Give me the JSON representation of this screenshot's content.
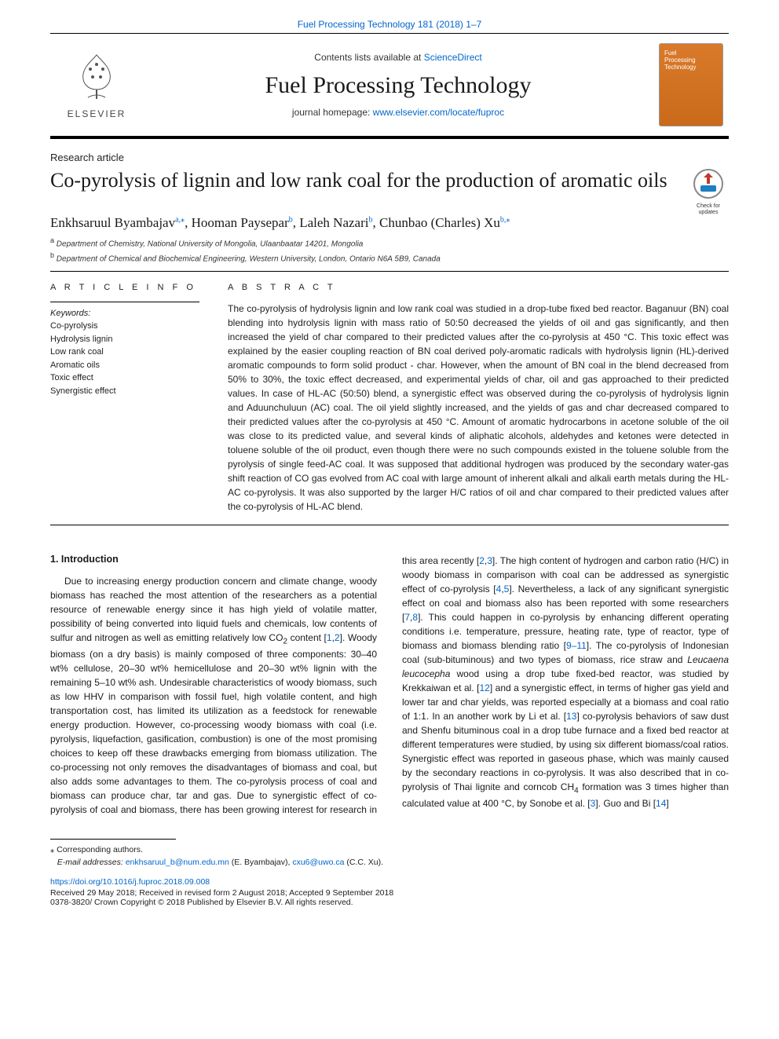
{
  "top_link": "Fuel Processing Technology 181 (2018) 1–7",
  "header": {
    "contents_text": "Contents lists available at ",
    "contents_link": "ScienceDirect",
    "journal_name": "Fuel Processing Technology",
    "homepage_text": "journal homepage: ",
    "homepage_link": "www.elsevier.com/locate/fuproc",
    "publisher_label": "ELSEVIER"
  },
  "article_type": "Research article",
  "title": "Co-pyrolysis of lignin and low rank coal for the production of aromatic oils",
  "check_updates_label": "Check for updates",
  "authors_html": "Enkhsaruul Byambajav<sup>a,⁎</sup>, Hooman Paysepar<sup>b</sup>, Laleh Nazari<sup>b</sup>, Chunbao (Charles) Xu<sup>b,⁎</sup>",
  "affiliations": [
    {
      "sup": "a",
      "text": "Department of Chemistry, National University of Mongolia, Ulaanbaatar 14201, Mongolia"
    },
    {
      "sup": "b",
      "text": "Department of Chemical and Biochemical Engineering, Western University, London, Ontario N6A 5B9, Canada"
    }
  ],
  "info": {
    "label": "A R T I C L E  I N F O",
    "keywords_head": "Keywords:",
    "keywords": [
      "Co-pyrolysis",
      "Hydrolysis lignin",
      "Low rank coal",
      "Aromatic oils",
      "Toxic effect",
      "Synergistic effect"
    ]
  },
  "abstract": {
    "label": "A B S T R A C T",
    "text": "The co-pyrolysis of hydrolysis lignin and low rank coal was studied in a drop-tube fixed bed reactor. Baganuur (BN) coal blending into hydrolysis lignin with mass ratio of 50:50 decreased the yields of oil and gas significantly, and then increased the yield of char compared to their predicted values after the co-pyrolysis at 450 °C. This toxic effect was explained by the easier coupling reaction of BN coal derived poly-aromatic radicals with hydrolysis lignin (HL)-derived aromatic compounds to form solid product - char. However, when the amount of BN coal in the blend decreased from 50% to 30%, the toxic effect decreased, and experimental yields of char, oil and gas approached to their predicted values. In case of HL-AC (50:50) blend, a synergistic effect was observed during the co-pyrolysis of hydrolysis lignin and Aduunchuluun (AC) coal. The oil yield slightly increased, and the yields of gas and char decreased compared to their predicted values after the co-pyrolysis at 450 °C. Amount of aromatic hydrocarbons in acetone soluble of the oil was close to its predicted value, and several kinds of aliphatic alcohols, aldehydes and ketones were detected in toluene soluble of the oil product, even though there were no such compounds existed in the toluene soluble from the pyrolysis of single feed-AC coal. It was supposed that additional hydrogen was produced by the secondary water-gas shift reaction of CO gas evolved from AC coal with large amount of inherent alkali and alkali earth metals during the HL-AC co-pyrolysis. It was also supported by the larger H/C ratios of oil and char compared to their predicted values after the co-pyrolysis of HL-AC blend."
  },
  "body": {
    "h1": "1. Introduction",
    "p_html": "Due to increasing energy production concern and climate change, woody biomass has reached the most attention of the researchers as a potential resource of renewable energy since it has high yield of volatile matter, possibility of being converted into liquid fuels and chemicals, low contents of sulfur and nitrogen as well as emitting relatively low CO<sub>2</sub> content [<span class=\"ref\">1</span>,<span class=\"ref\">2</span>]. Woody biomass (on a dry basis) is mainly composed of three components: 30–40 wt% cellulose, 20–30 wt% hemicellulose and 20–30 wt% lignin with the remaining 5–10 wt% ash. Undesirable characteristics of woody biomass, such as low HHV in comparison with fossil fuel, high volatile content, and high transportation cost, has limited its utilization as a feedstock for renewable energy production. However, co-processing woody biomass with coal (i.e. pyrolysis, liquefaction, gasification, combustion) is one of the most promising choices to keep off these drawbacks emerging from biomass utilization. The co-processing not only removes the disadvantages of biomass and coal, but also adds some advantages to them. The co-pyrolysis process of coal and biomass can produce char, tar and gas. Due to synergistic effect of co-pyrolysis of coal and biomass, there has been growing interest for research in this area recently [<span class=\"ref\">2</span>,<span class=\"ref\">3</span>]. The high content of hydrogen and carbon ratio (H/C) in woody biomass in comparison with coal can be addressed as synergistic effect of co-pyrolysis [<span class=\"ref\">4</span>,<span class=\"ref\">5</span>]. Nevertheless, a lack of any significant synergistic effect on coal and biomass also has been reported with some researchers [<span class=\"ref\">7</span>,<span class=\"ref\">8</span>]. This could happen in co-pyrolysis by enhancing different operating conditions i.e. temperature, pressure, heating rate, type of reactor, type of biomass and biomass blending ratio [<span class=\"ref\">9–11</span>]. The co-pyrolysis of Indonesian coal (sub-bituminous) and two types of biomass, rice straw and <i>Leucaena leucocepha</i> wood using a drop tube fixed-bed reactor, was studied by Krekkaiwan et al. [<span class=\"ref\">12</span>] and a synergistic effect, in terms of higher gas yield and lower tar and char yields, was reported especially at a biomass and coal ratio of 1:1. In an another work by Li et al. [<span class=\"ref\">13</span>] co-pyrolysis behaviors of saw dust and Shenfu bituminous coal in a drop tube furnace and a fixed bed reactor at different temperatures were studied, by using six different biomass/coal ratios. Synergistic effect was reported in gaseous phase, which was mainly caused by the secondary reactions in co-pyrolysis. It was also described that in co-pyrolysis of Thai lignite and corncob CH<sub>4</sub> formation was 3 times higher than calculated value at 400 °C, by Sonobe et al. [<span class=\"ref\">3</span>]. Guo and Bi [<span class=\"ref\">14</span>]"
  },
  "footnotes": {
    "corr": "⁎ Corresponding authors.",
    "emails_label": "E-mail addresses: ",
    "email1": "enkhsaruul_b@num.edu.mn",
    "email1_tail": " (E. Byambajav), ",
    "email2": "cxu6@uwo.ca",
    "email2_tail": " (C.C. Xu)."
  },
  "doi": "https://doi.org/10.1016/j.fuproc.2018.09.008",
  "history": "Received 29 May 2018; Received in revised form 2 August 2018; Accepted 9 September 2018",
  "copyright": "0378-3820/ Crown Copyright © 2018 Published by Elsevier B.V. All rights reserved.",
  "colors": {
    "link": "#0066cc",
    "cover_bg": "#d97a2a",
    "text": "#1a1a1a"
  },
  "typography": {
    "title_fontsize": 26,
    "journal_fontsize": 30,
    "body_fontsize": 12,
    "abstract_fontsize": 12,
    "footnote_fontsize": 10.5
  }
}
